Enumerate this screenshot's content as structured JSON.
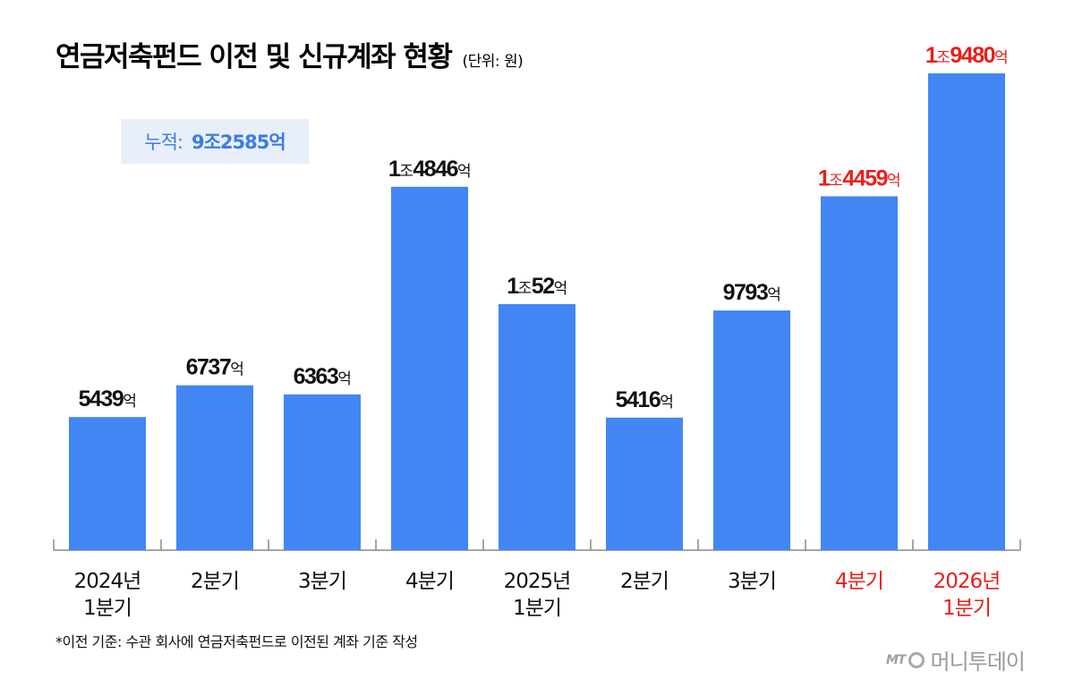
{
  "header": {
    "title": "연금저축펀드 이전 및 신규계좌 현황",
    "unit": "(단위: 원)"
  },
  "total": {
    "label": "누적:",
    "value": "9조2585억"
  },
  "footnote": "*이전 기준: 수관 회사에 연금저축펀드로 이전된 계좌 기준 작성",
  "logo": {
    "mark": "MT",
    "text": "머니투데이"
  },
  "colors": {
    "bar": "#4286f4",
    "highlight": "#e8201b",
    "axis": "#888888",
    "label": "#111111"
  },
  "chart_data": {
    "type": "bar",
    "title": "연금저축펀드 이전 및 신규계좌 현황",
    "unit": "억원",
    "ylim": [
      0,
      20000
    ],
    "categories": [
      "2024년\n1분기",
      "2분기",
      "3분기",
      "4분기",
      "2025년\n1분기",
      "2분기",
      "3분기",
      "4분기",
      "2026년\n1분기"
    ],
    "values": [
      5439,
      6737,
      6363,
      14846,
      10052,
      5416,
      9793,
      14459,
      19480
    ],
    "value_labels": [
      [
        "",
        "5439"
      ],
      [
        "",
        "6737"
      ],
      [
        "",
        "6363"
      ],
      [
        "1",
        "4846"
      ],
      [
        "1",
        "52"
      ],
      [
        "",
        "5416"
      ],
      [
        "",
        "9793"
      ],
      [
        "1",
        "4459"
      ],
      [
        "1",
        "9480"
      ]
    ],
    "jo_suffix": "조",
    "eok_suffix": "억",
    "highlighted": [
      false,
      false,
      false,
      false,
      false,
      false,
      false,
      true,
      true
    ]
  }
}
